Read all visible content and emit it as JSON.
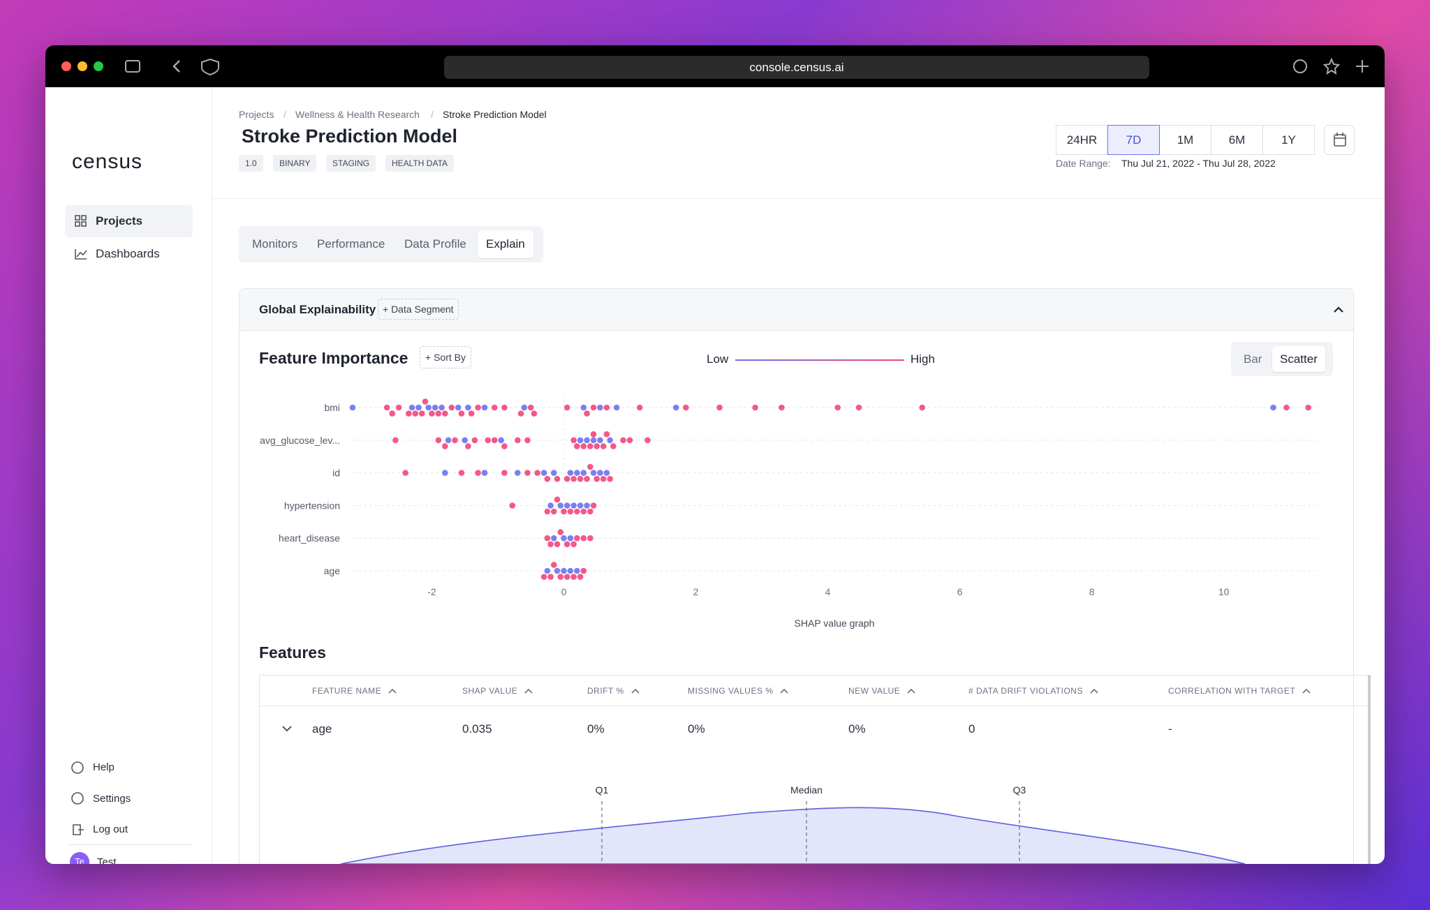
{
  "browser": {
    "url": "console.census.ai"
  },
  "sidebar": {
    "logo": "census",
    "nav": [
      "Projects",
      "Dashboards"
    ],
    "footer": [
      "Help",
      "Settings",
      "Log out"
    ],
    "user": {
      "initials": "Te",
      "name": "Test"
    }
  },
  "header": {
    "breadcrumb": [
      "Projects",
      "Wellness & Health Research",
      "Stroke Prediction Model"
    ],
    "title": "Stroke Prediction Model",
    "tags": [
      "1.0",
      "BINARY",
      "STAGING",
      "HEALTH DATA"
    ],
    "time_ranges": [
      "24HR",
      "7D",
      "1M",
      "6M",
      "1Y"
    ],
    "selected_range": 1,
    "date_range_label": "Date Range:",
    "date_range": "Thu Jul 21, 2022 - Thu Jul 28, 2022"
  },
  "tabs": {
    "items": [
      "Monitors",
      "Performance",
      "Data Profile",
      "Explain"
    ],
    "active": 3
  },
  "panel": {
    "title": "Global Explainability",
    "segment_button": "+ Data Segment"
  },
  "chart_data": {
    "type": "scatter",
    "title": "Feature Importance",
    "sort_button": "+ Sort By",
    "view_options": [
      "Bar",
      "Scatter"
    ],
    "active_view": 1,
    "categories": [
      "bmi",
      "avg_glucose_lev...",
      "id",
      "hypertension",
      "heart_disease",
      "age"
    ],
    "series": [
      {
        "name": "Low",
        "color": "#6c72f0",
        "values": [
          [
            -3.2,
            -2.3,
            -2.2,
            -2.05,
            -1.95,
            -1.85,
            -1.6,
            -1.45,
            -1.2,
            -0.6,
            0.3,
            0.55,
            0.8,
            1.7,
            10.75
          ],
          [
            -1.75,
            -1.5,
            -0.95,
            0.25,
            0.35,
            0.45,
            0.55,
            0.7
          ],
          [
            -1.8,
            -1.2,
            -0.7,
            -0.3,
            -0.15,
            0.1,
            0.2,
            0.3,
            0.45,
            0.55,
            0.65
          ],
          [
            -0.2,
            -0.05,
            0.05,
            0.15,
            0.25,
            0.35
          ],
          [
            -0.15,
            0,
            0.1
          ],
          [
            -0.25,
            -0.1,
            0,
            0.1,
            0.2
          ]
        ]
      },
      {
        "name": "High",
        "color": "#f2467c",
        "values": [
          [
            -2.68,
            -2.6,
            -2.5,
            -2.35,
            -2.25,
            -2.15,
            -2.1,
            -2.0,
            -1.9,
            -1.8,
            -1.7,
            -1.55,
            -1.4,
            -1.3,
            -1.05,
            -0.9,
            -0.65,
            -0.5,
            -0.45,
            0.05,
            0.35,
            0.45,
            0.65,
            1.15,
            1.85,
            2.36,
            2.9,
            3.3,
            4.15,
            4.47,
            5.43,
            10.95,
            11.28
          ],
          [
            -2.55,
            -1.9,
            -1.8,
            -1.65,
            -1.45,
            -1.35,
            -1.15,
            -1.05,
            -0.9,
            -0.7,
            -0.55,
            0.15,
            0.2,
            0.3,
            0.4,
            0.45,
            0.5,
            0.6,
            0.65,
            0.75,
            0.9,
            1.0,
            1.27
          ],
          [
            -2.4,
            -1.55,
            -1.3,
            -0.9,
            -0.55,
            -0.4,
            -0.25,
            -0.1,
            0.05,
            0.15,
            0.25,
            0.35,
            0.4,
            0.5,
            0.6,
            0.7
          ],
          [
            -0.78,
            -0.25,
            -0.15,
            -0.1,
            0,
            0.1,
            0.2,
            0.3,
            0.4,
            0.45
          ],
          [
            -0.25,
            -0.2,
            -0.1,
            -0.05,
            0.05,
            0.15,
            0.2,
            0.3,
            0.4
          ],
          [
            -0.3,
            -0.2,
            -0.15,
            -0.05,
            0.05,
            0.15,
            0.25,
            0.3
          ]
        ]
      }
    ],
    "xlim": [
      -3.2,
      11.4
    ],
    "xticks": [
      -2,
      0,
      2,
      4,
      6,
      8,
      10
    ],
    "xlabel": "SHAP value graph",
    "grid": true
  },
  "features": {
    "title": "Features",
    "columns": [
      "FEATURE NAME",
      "SHAP VALUE",
      "DRIFT %",
      "MISSING VALUES %",
      "NEW VALUE",
      "# DATA DRIFT VIOLATIONS",
      "CORRELATION WITH TARGET"
    ],
    "rows": [
      [
        "age",
        "0.035",
        "0%",
        "0%",
        "0%",
        "0",
        "-"
      ]
    ],
    "distribution": {
      "markers": [
        "Q1",
        "Median",
        "Q3"
      ]
    }
  }
}
